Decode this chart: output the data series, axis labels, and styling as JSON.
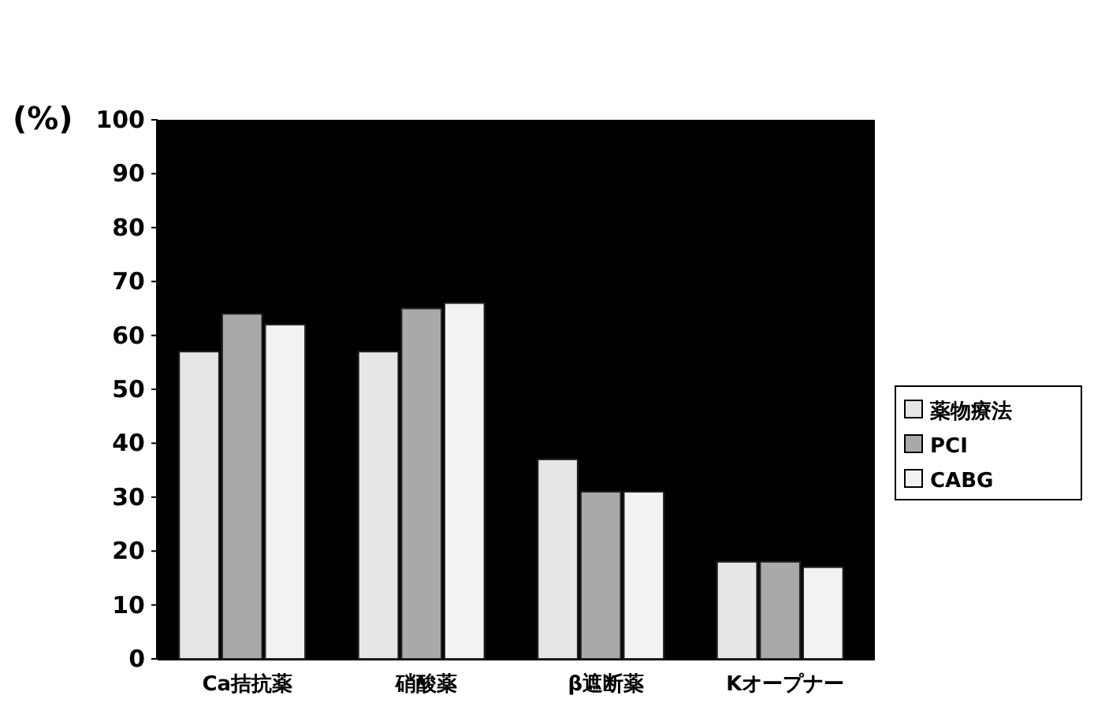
{
  "chart_data": {
    "type": "bar",
    "ylabel": "(%)",
    "categories": [
      "Ca拮抗薬",
      "硝酸薬",
      "β遮断薬",
      "Kオープナー"
    ],
    "series": [
      {
        "name": "薬物療法",
        "color": "#e6e6e6",
        "values": [
          57,
          57,
          37,
          18
        ]
      },
      {
        "name": "PCI",
        "color": "#a9a9a9",
        "values": [
          64,
          65,
          31,
          18
        ]
      },
      {
        "name": "CABG",
        "color": "#f2f2f2",
        "values": [
          62,
          66,
          31,
          17
        ]
      }
    ],
    "ylim": [
      0,
      100
    ],
    "yticks": [
      0,
      10,
      20,
      30,
      40,
      50,
      60,
      70,
      80,
      90,
      100
    ],
    "grid": false,
    "legend": "right"
  }
}
